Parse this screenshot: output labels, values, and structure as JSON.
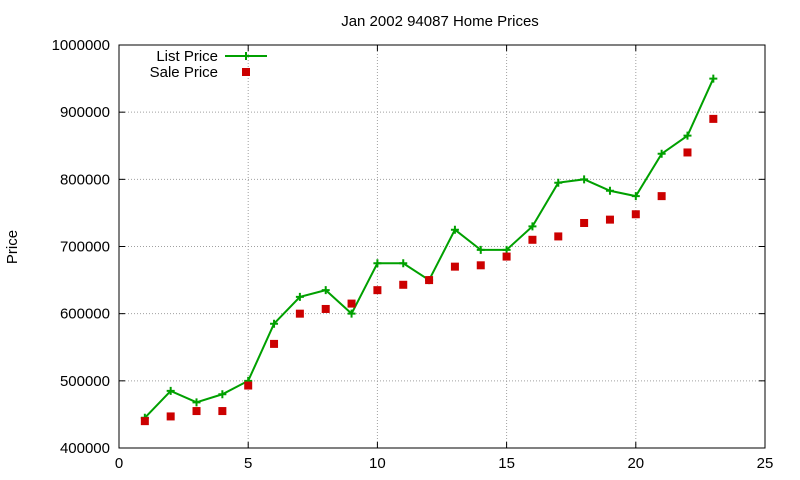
{
  "chart_data": {
    "type": "line",
    "title": "Jan 2002 94087 Home Prices",
    "xlabel": "",
    "ylabel": "Price",
    "xlim": [
      0,
      25
    ],
    "ylim": [
      400000,
      1000000
    ],
    "xticks": [
      "0",
      "5",
      "10",
      "15",
      "20",
      "25"
    ],
    "yticks": [
      "400000",
      "500000",
      "600000",
      "700000",
      "800000",
      "900000",
      "1000000"
    ],
    "grid": true,
    "legend_position": "top-left",
    "series": [
      {
        "name": "List Price",
        "style": "line+cross",
        "color": "#00a000",
        "x": [
          1,
          2,
          3,
          4,
          5,
          6,
          7,
          8,
          9,
          10,
          11,
          12,
          13,
          14,
          15,
          16,
          17,
          18,
          19,
          20,
          21,
          22,
          23
        ],
        "y": [
          445000,
          485000,
          468000,
          480000,
          500000,
          585000,
          625000,
          635000,
          600000,
          675000,
          675000,
          650000,
          725000,
          695000,
          695000,
          730000,
          795000,
          800000,
          783000,
          775000,
          838000,
          865000,
          950000
        ]
      },
      {
        "name": "Sale Price",
        "style": "square",
        "color": "#cc0000",
        "x": [
          1,
          2,
          3,
          4,
          5,
          6,
          7,
          8,
          9,
          10,
          11,
          12,
          13,
          14,
          15,
          16,
          17,
          18,
          19,
          20,
          21,
          22,
          23
        ],
        "y": [
          440000,
          447000,
          455000,
          455000,
          493000,
          555000,
          600000,
          607000,
          615000,
          635000,
          643000,
          650000,
          670000,
          672000,
          685000,
          710000,
          715000,
          735000,
          740000,
          748000,
          775000,
          840000,
          890000
        ]
      }
    ]
  }
}
